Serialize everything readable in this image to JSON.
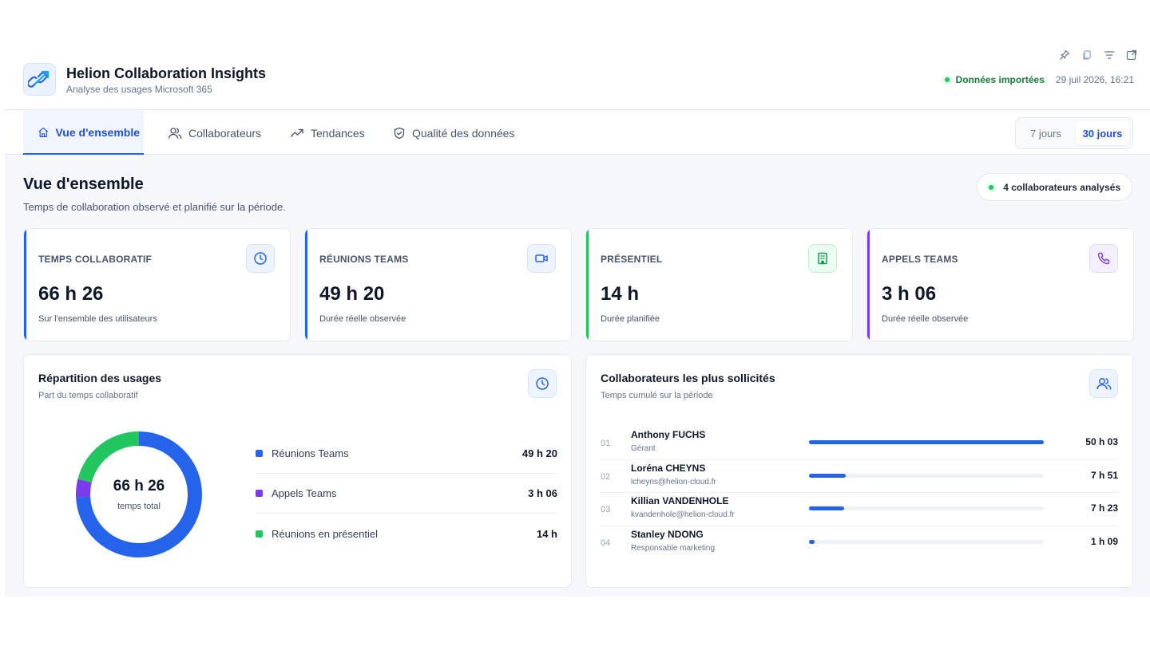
{
  "app": {
    "title": "Helion Collaboration Insights",
    "subtitle": "Analyse des usages Microsoft 365",
    "status_label": "Données importées",
    "status_date": "29 juil 2026, 16:21"
  },
  "toolbar_icons": [
    "pin-icon",
    "copy-icon",
    "filter-icon",
    "expand-icon"
  ],
  "nav": {
    "tabs": [
      {
        "label": "Vue d'ensemble",
        "icon": "home-icon",
        "active": true
      },
      {
        "label": "Collaborateurs",
        "icon": "users-icon",
        "active": false
      },
      {
        "label": "Tendances",
        "icon": "trend-icon",
        "active": false
      },
      {
        "label": "Qualité des données",
        "icon": "shield-icon",
        "active": false
      }
    ],
    "periods": [
      {
        "label": "7 jours",
        "active": false
      },
      {
        "label": "30 jours",
        "active": true
      }
    ]
  },
  "page": {
    "title": "Vue d'ensemble",
    "subtitle": "Temps de collaboration observé et planifié sur la période.",
    "analysed_label": "4 collaborateurs analysés"
  },
  "kpis": [
    {
      "label": "TEMPS COLLABORATIF",
      "value": "66 h 26",
      "note": "Sur l'ensemble des utilisateurs",
      "icon": "clock-icon",
      "color": "#2563eb"
    },
    {
      "label": "RÉUNIONS TEAMS",
      "value": "49 h 20",
      "note": "Durée réelle observée",
      "icon": "video-icon",
      "color": "#2563eb"
    },
    {
      "label": "PRÉSENTIEL",
      "value": "14 h",
      "note": "Durée planifiée",
      "icon": "building-icon",
      "color": "#22c55e"
    },
    {
      "label": "APPELS TEAMS",
      "value": "3 h 06",
      "note": "Durée réelle observée",
      "icon": "phone-icon",
      "color": "#7c3aed"
    }
  ],
  "usage": {
    "title": "Répartition des usages",
    "subtitle": "Part du temps collaboratif",
    "total": "66 h 26",
    "total_label": "temps total",
    "items": [
      {
        "label": "Réunions Teams",
        "value": "49 h 20",
        "minutes": 2960,
        "color": "#2563eb"
      },
      {
        "label": "Appels Teams",
        "value": "3 h 06",
        "minutes": 186,
        "color": "#7c3aed"
      },
      {
        "label": "Réunions en présentiel",
        "value": "14 h",
        "minutes": 840,
        "color": "#22c55e"
      }
    ]
  },
  "top_users": {
    "title": "Collaborateurs les plus sollicités",
    "subtitle": "Temps cumulé sur la période",
    "rows": [
      {
        "rank": "01",
        "name": "Anthony FUCHS",
        "role": "Gérant",
        "value": "50 h 03",
        "ratio": 1.0
      },
      {
        "rank": "02",
        "name": "Loréna CHEYNS",
        "role": "lcheyns@helion-cloud.fr",
        "value": "7 h 51",
        "ratio": 0.157
      },
      {
        "rank": "03",
        "name": "Killian VANDENHOLE",
        "role": "kvandenhole@helion-cloud.fr",
        "value": "7 h 23",
        "ratio": 0.148
      },
      {
        "rank": "04",
        "name": "Stanley NDONG",
        "role": "Responsable marketing",
        "value": "1 h 09",
        "ratio": 0.023
      }
    ]
  }
}
